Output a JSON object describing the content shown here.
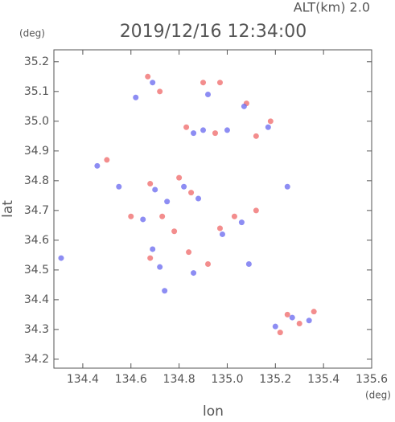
{
  "chart_data": {
    "type": "scatter",
    "title": "2019/12/16 12:34:00",
    "subtitle": "ALT(km)  2.0",
    "x_label": "lon",
    "y_label": "lat",
    "x_unit": "(deg)",
    "y_unit": "(deg)",
    "xlim": [
      134.28,
      135.6
    ],
    "ylim": [
      34.17,
      35.24
    ],
    "xticks": [
      134.4,
      134.6,
      134.8,
      {
        "value": 135.0,
        "label": "135.0"
      },
      135.2,
      135.4,
      135.6
    ],
    "yticks": [
      34.2,
      34.3,
      34.4,
      34.5,
      34.6,
      34.7,
      34.8,
      34.9,
      {
        "value": 35.0,
        "label": "35.0"
      },
      35.1,
      35.2
    ],
    "series": [
      {
        "color": "#f07070",
        "x": [
          134.67,
          134.72,
          134.9,
          134.97,
          135.08,
          135.18,
          134.83,
          134.95,
          135.12,
          134.5,
          134.68,
          134.8,
          134.85,
          134.6,
          134.73,
          135.03,
          135.12,
          134.84,
          134.92,
          134.68,
          135.25,
          135.3,
          135.36,
          135.22,
          134.78,
          134.97
        ],
        "y": [
          35.15,
          35.1,
          35.13,
          35.13,
          35.06,
          35.0,
          34.98,
          34.96,
          34.95,
          34.87,
          34.79,
          34.81,
          34.76,
          34.68,
          34.68,
          34.68,
          34.7,
          34.56,
          34.52,
          34.54,
          34.35,
          34.32,
          34.36,
          34.29,
          34.63,
          34.64
        ]
      },
      {
        "color": "#7070f0",
        "x": [
          134.69,
          134.62,
          134.92,
          135.07,
          135.17,
          134.86,
          134.9,
          135.0,
          134.46,
          134.55,
          134.7,
          134.75,
          134.82,
          134.88,
          134.65,
          135.06,
          134.98,
          134.69,
          134.72,
          134.86,
          135.27,
          135.34,
          135.2,
          134.31,
          134.74,
          135.09,
          135.25
        ],
        "y": [
          35.13,
          35.08,
          35.09,
          35.05,
          34.98,
          34.96,
          34.97,
          34.97,
          34.85,
          34.78,
          34.77,
          34.73,
          34.78,
          34.74,
          34.67,
          34.66,
          34.62,
          34.57,
          34.51,
          34.49,
          34.34,
          34.33,
          34.31,
          34.54,
          34.43,
          34.52,
          34.78
        ]
      }
    ]
  }
}
